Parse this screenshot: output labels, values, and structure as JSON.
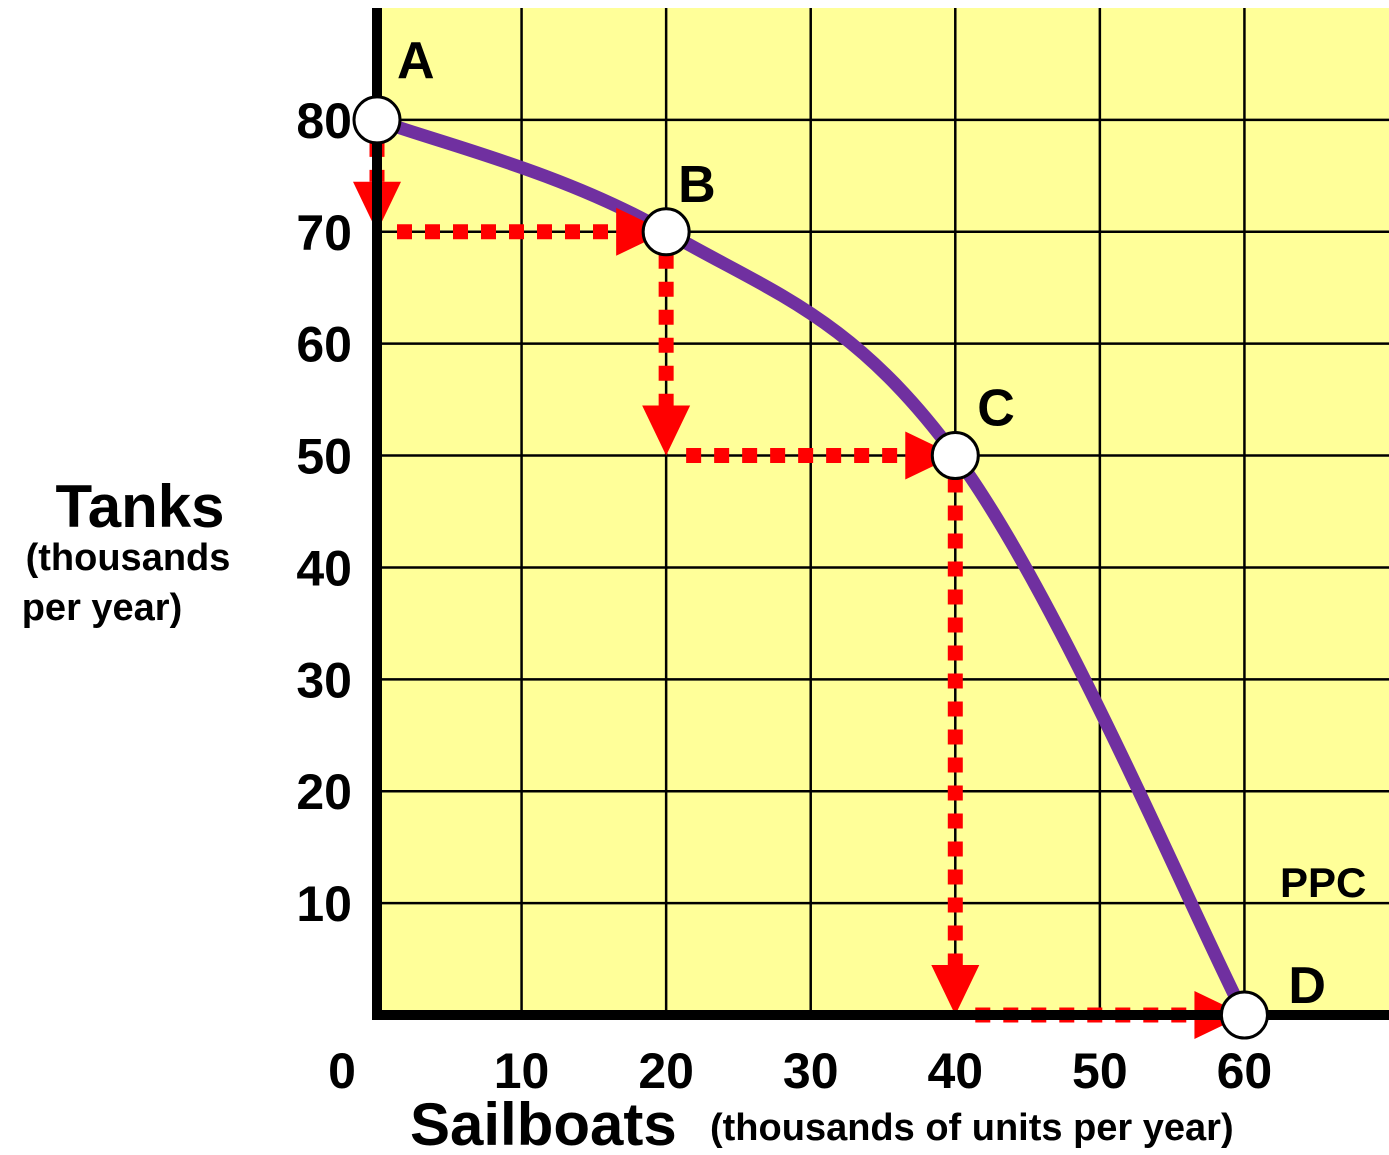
{
  "chart_data": {
    "type": "line",
    "title": "",
    "xlabel": {
      "main": "Sailboats",
      "sub": "(thousands of units per year)"
    },
    "ylabel": {
      "main": "Tanks",
      "sub_line1": "(thousands",
      "sub_line2": "per year)"
    },
    "origin_label": "0",
    "x_ticks": [
      "10",
      "20",
      "30",
      "40",
      "50",
      "60"
    ],
    "y_ticks": [
      "10",
      "20",
      "30",
      "40",
      "50",
      "60",
      "70",
      "80"
    ],
    "xlim": [
      0,
      70
    ],
    "ylim": [
      0,
      90
    ],
    "grid": true,
    "series": [
      {
        "name": "PPC",
        "color": "#7030a0",
        "points": [
          {
            "label": "A",
            "x": 0,
            "y": 80
          },
          {
            "label": "B",
            "x": 20,
            "y": 70
          },
          {
            "label": "C",
            "x": 40,
            "y": 50
          },
          {
            "label": "D",
            "x": 60,
            "y": 0
          }
        ]
      }
    ],
    "arrows": [
      {
        "from": [
          0,
          80
        ],
        "to": [
          0,
          70
        ],
        "direction": "down"
      },
      {
        "from": [
          0,
          70
        ],
        "to": [
          20,
          70
        ],
        "direction": "right"
      },
      {
        "from": [
          20,
          70
        ],
        "to": [
          20,
          50
        ],
        "direction": "down"
      },
      {
        "from": [
          20,
          50
        ],
        "to": [
          40,
          50
        ],
        "direction": "right"
      },
      {
        "from": [
          40,
          50
        ],
        "to": [
          40,
          0
        ],
        "direction": "down"
      },
      {
        "from": [
          40,
          0
        ],
        "to": [
          60,
          0
        ],
        "direction": "right"
      }
    ],
    "colors": {
      "background": "#ffff99",
      "grid": "#000000",
      "curve": "#7030a0",
      "arrows": "#ff0000"
    }
  }
}
